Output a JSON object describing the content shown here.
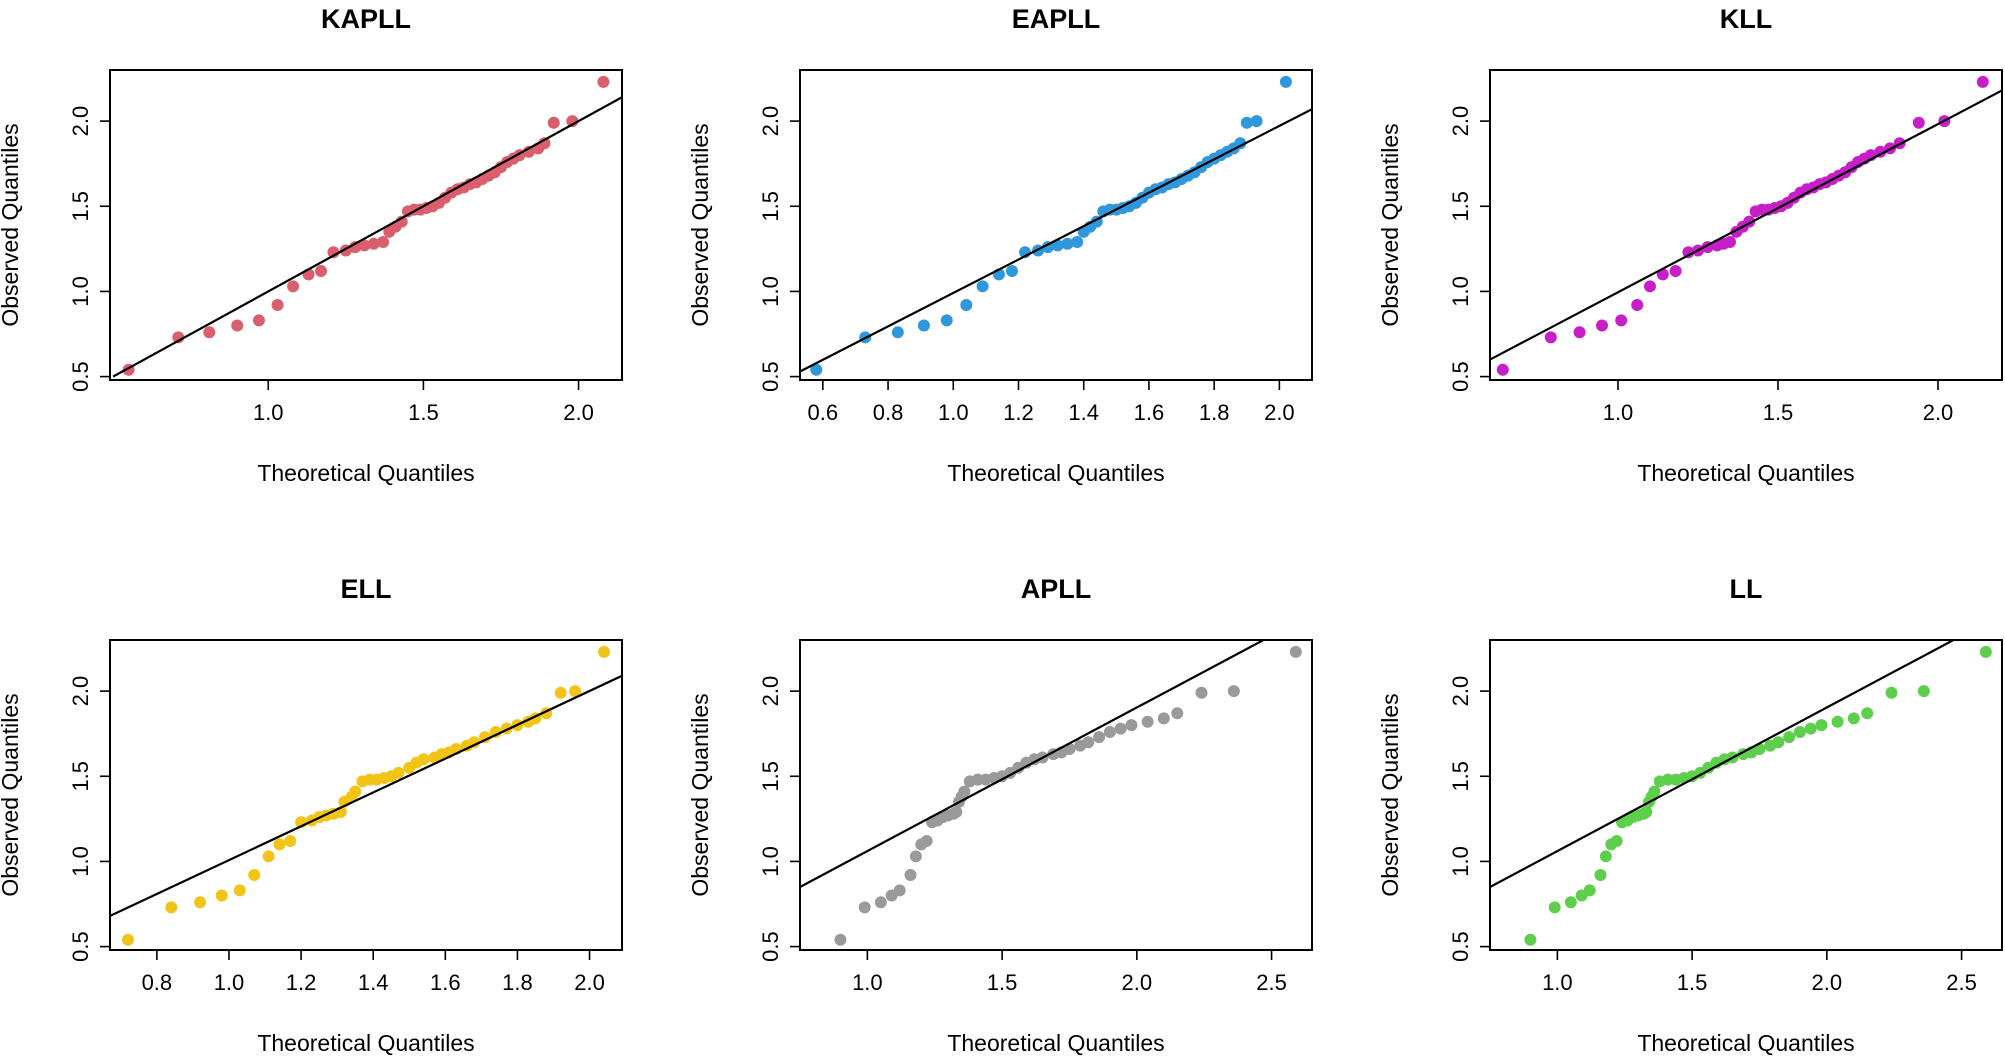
{
  "chart_data": [
    {
      "type": "scatter",
      "title": "KAPLL",
      "xlabel": "Theoretical Quantiles",
      "ylabel": "Observed Quantiles",
      "color": "#d95f6e",
      "xlim": [
        0.49,
        2.14
      ],
      "ylim": [
        0.48,
        2.3
      ],
      "xticks": [
        "1.0",
        "1.5",
        "2.0"
      ],
      "yticks": [
        "0.5",
        "1.0",
        "1.5",
        "2.0"
      ],
      "ref_line": [
        [
          0.5,
          0.5
        ],
        [
          2.14,
          2.14
        ]
      ],
      "points": [
        [
          0.55,
          0.54
        ],
        [
          0.71,
          0.73
        ],
        [
          0.81,
          0.76
        ],
        [
          0.9,
          0.8
        ],
        [
          0.97,
          0.83
        ],
        [
          1.03,
          0.92
        ],
        [
          1.08,
          1.03
        ],
        [
          1.13,
          1.1
        ],
        [
          1.17,
          1.12
        ],
        [
          1.21,
          1.23
        ],
        [
          1.25,
          1.24
        ],
        [
          1.28,
          1.26
        ],
        [
          1.31,
          1.27
        ],
        [
          1.34,
          1.28
        ],
        [
          1.37,
          1.29
        ],
        [
          1.39,
          1.35
        ],
        [
          1.41,
          1.38
        ],
        [
          1.43,
          1.41
        ],
        [
          1.45,
          1.47
        ],
        [
          1.47,
          1.48
        ],
        [
          1.49,
          1.48
        ],
        [
          1.51,
          1.49
        ],
        [
          1.53,
          1.5
        ],
        [
          1.55,
          1.52
        ],
        [
          1.57,
          1.55
        ],
        [
          1.59,
          1.58
        ],
        [
          1.61,
          1.6
        ],
        [
          1.63,
          1.61
        ],
        [
          1.65,
          1.63
        ],
        [
          1.67,
          1.64
        ],
        [
          1.69,
          1.66
        ],
        [
          1.71,
          1.68
        ],
        [
          1.73,
          1.7
        ],
        [
          1.75,
          1.73
        ],
        [
          1.77,
          1.76
        ],
        [
          1.79,
          1.78
        ],
        [
          1.81,
          1.8
        ],
        [
          1.84,
          1.82
        ],
        [
          1.87,
          1.84
        ],
        [
          1.89,
          1.87
        ],
        [
          1.92,
          1.99
        ],
        [
          1.98,
          2.0
        ],
        [
          2.08,
          2.23
        ]
      ]
    },
    {
      "type": "scatter",
      "title": "EAPLL",
      "xlabel": "Theoretical Quantiles",
      "ylabel": "Observed Quantiles",
      "color": "#2f97dc",
      "xlim": [
        0.53,
        2.1
      ],
      "ylim": [
        0.48,
        2.3
      ],
      "xticks": [
        "0.6",
        "0.8",
        "1.0",
        "1.2",
        "1.4",
        "1.6",
        "1.8",
        "2.0"
      ],
      "yticks": [
        "0.5",
        "1.0",
        "1.5",
        "2.0"
      ],
      "ref_line": [
        [
          0.53,
          0.53
        ],
        [
          2.1,
          2.07
        ]
      ],
      "points": [
        [
          0.58,
          0.54
        ],
        [
          0.73,
          0.73
        ],
        [
          0.83,
          0.76
        ],
        [
          0.91,
          0.8
        ],
        [
          0.98,
          0.83
        ],
        [
          1.04,
          0.92
        ],
        [
          1.09,
          1.03
        ],
        [
          1.14,
          1.1
        ],
        [
          1.18,
          1.12
        ],
        [
          1.22,
          1.23
        ],
        [
          1.26,
          1.24
        ],
        [
          1.29,
          1.26
        ],
        [
          1.32,
          1.27
        ],
        [
          1.35,
          1.28
        ],
        [
          1.38,
          1.29
        ],
        [
          1.4,
          1.35
        ],
        [
          1.42,
          1.38
        ],
        [
          1.44,
          1.41
        ],
        [
          1.46,
          1.47
        ],
        [
          1.48,
          1.48
        ],
        [
          1.5,
          1.48
        ],
        [
          1.52,
          1.49
        ],
        [
          1.54,
          1.5
        ],
        [
          1.56,
          1.52
        ],
        [
          1.58,
          1.55
        ],
        [
          1.6,
          1.58
        ],
        [
          1.62,
          1.6
        ],
        [
          1.64,
          1.61
        ],
        [
          1.66,
          1.63
        ],
        [
          1.68,
          1.64
        ],
        [
          1.7,
          1.66
        ],
        [
          1.72,
          1.68
        ],
        [
          1.74,
          1.7
        ],
        [
          1.76,
          1.73
        ],
        [
          1.78,
          1.76
        ],
        [
          1.8,
          1.78
        ],
        [
          1.82,
          1.8
        ],
        [
          1.84,
          1.82
        ],
        [
          1.86,
          1.84
        ],
        [
          1.88,
          1.87
        ],
        [
          1.9,
          1.99
        ],
        [
          1.93,
          2.0
        ],
        [
          2.02,
          2.23
        ]
      ]
    },
    {
      "type": "scatter",
      "title": "KLL",
      "xlabel": "Theoretical Quantiles",
      "ylabel": "Observed Quantiles",
      "color": "#c71fc7",
      "xlim": [
        0.6,
        2.2
      ],
      "ylim": [
        0.48,
        2.3
      ],
      "xticks": [
        "1.0",
        "1.5",
        "2.0"
      ],
      "yticks": [
        "0.5",
        "1.0",
        "1.5",
        "2.0"
      ],
      "ref_line": [
        [
          0.6,
          0.6
        ],
        [
          2.2,
          2.18
        ]
      ],
      "points": [
        [
          0.64,
          0.54
        ],
        [
          0.79,
          0.73
        ],
        [
          0.88,
          0.76
        ],
        [
          0.95,
          0.8
        ],
        [
          1.01,
          0.83
        ],
        [
          1.06,
          0.92
        ],
        [
          1.1,
          1.03
        ],
        [
          1.14,
          1.1
        ],
        [
          1.18,
          1.12
        ],
        [
          1.22,
          1.23
        ],
        [
          1.25,
          1.24
        ],
        [
          1.28,
          1.26
        ],
        [
          1.31,
          1.27
        ],
        [
          1.33,
          1.28
        ],
        [
          1.35,
          1.29
        ],
        [
          1.37,
          1.35
        ],
        [
          1.39,
          1.38
        ],
        [
          1.41,
          1.41
        ],
        [
          1.43,
          1.47
        ],
        [
          1.45,
          1.48
        ],
        [
          1.47,
          1.48
        ],
        [
          1.49,
          1.49
        ],
        [
          1.51,
          1.5
        ],
        [
          1.53,
          1.52
        ],
        [
          1.55,
          1.55
        ],
        [
          1.57,
          1.58
        ],
        [
          1.59,
          1.6
        ],
        [
          1.61,
          1.61
        ],
        [
          1.63,
          1.63
        ],
        [
          1.65,
          1.64
        ],
        [
          1.67,
          1.66
        ],
        [
          1.69,
          1.68
        ],
        [
          1.71,
          1.7
        ],
        [
          1.73,
          1.73
        ],
        [
          1.75,
          1.76
        ],
        [
          1.77,
          1.78
        ],
        [
          1.79,
          1.8
        ],
        [
          1.82,
          1.82
        ],
        [
          1.85,
          1.84
        ],
        [
          1.88,
          1.87
        ],
        [
          1.94,
          1.99
        ],
        [
          2.02,
          2.0
        ],
        [
          2.14,
          2.23
        ]
      ]
    },
    {
      "type": "scatter",
      "title": "ELL",
      "xlabel": "Theoretical Quantiles",
      "ylabel": "Observed Quantiles",
      "color": "#f2c418",
      "xlim": [
        0.67,
        2.09
      ],
      "ylim": [
        0.48,
        2.3
      ],
      "xticks": [
        "0.8",
        "1.0",
        "1.2",
        "1.4",
        "1.6",
        "1.8",
        "2.0"
      ],
      "yticks": [
        "0.5",
        "1.0",
        "1.5",
        "2.0"
      ],
      "ref_line": [
        [
          0.67,
          0.68
        ],
        [
          2.09,
          2.09
        ]
      ],
      "points": [
        [
          0.72,
          0.54
        ],
        [
          0.84,
          0.73
        ],
        [
          0.92,
          0.76
        ],
        [
          0.98,
          0.8
        ],
        [
          1.03,
          0.83
        ],
        [
          1.07,
          0.92
        ],
        [
          1.11,
          1.03
        ],
        [
          1.14,
          1.1
        ],
        [
          1.17,
          1.12
        ],
        [
          1.2,
          1.23
        ],
        [
          1.23,
          1.24
        ],
        [
          1.25,
          1.26
        ],
        [
          1.27,
          1.27
        ],
        [
          1.29,
          1.28
        ],
        [
          1.31,
          1.29
        ],
        [
          1.32,
          1.35
        ],
        [
          1.34,
          1.38
        ],
        [
          1.35,
          1.41
        ],
        [
          1.37,
          1.47
        ],
        [
          1.39,
          1.48
        ],
        [
          1.41,
          1.48
        ],
        [
          1.43,
          1.49
        ],
        [
          1.45,
          1.5
        ],
        [
          1.47,
          1.52
        ],
        [
          1.5,
          1.55
        ],
        [
          1.52,
          1.58
        ],
        [
          1.54,
          1.6
        ],
        [
          1.57,
          1.61
        ],
        [
          1.59,
          1.63
        ],
        [
          1.61,
          1.64
        ],
        [
          1.63,
          1.66
        ],
        [
          1.66,
          1.68
        ],
        [
          1.68,
          1.7
        ],
        [
          1.71,
          1.73
        ],
        [
          1.74,
          1.76
        ],
        [
          1.77,
          1.78
        ],
        [
          1.8,
          1.8
        ],
        [
          1.83,
          1.82
        ],
        [
          1.85,
          1.84
        ],
        [
          1.88,
          1.87
        ],
        [
          1.92,
          1.99
        ],
        [
          1.96,
          2.0
        ],
        [
          2.04,
          2.23
        ]
      ]
    },
    {
      "type": "scatter",
      "title": "APLL",
      "xlabel": "Theoretical Quantiles",
      "ylabel": "Observed Quantiles",
      "color": "#9a9a9a",
      "xlim": [
        0.75,
        2.65
      ],
      "ylim": [
        0.48,
        2.3
      ],
      "xticks": [
        "1.0",
        "1.5",
        "2.0",
        "2.5"
      ],
      "yticks": [
        "0.5",
        "1.0",
        "1.5",
        "2.0"
      ],
      "ref_line": [
        [
          0.75,
          0.85
        ],
        [
          2.47,
          2.3
        ]
      ],
      "points": [
        [
          0.9,
          0.54
        ],
        [
          0.99,
          0.73
        ],
        [
          1.05,
          0.76
        ],
        [
          1.09,
          0.8
        ],
        [
          1.12,
          0.83
        ],
        [
          1.16,
          0.92
        ],
        [
          1.18,
          1.03
        ],
        [
          1.2,
          1.1
        ],
        [
          1.22,
          1.12
        ],
        [
          1.24,
          1.23
        ],
        [
          1.26,
          1.24
        ],
        [
          1.28,
          1.26
        ],
        [
          1.3,
          1.27
        ],
        [
          1.32,
          1.28
        ],
        [
          1.33,
          1.29
        ],
        [
          1.34,
          1.35
        ],
        [
          1.35,
          1.38
        ],
        [
          1.36,
          1.41
        ],
        [
          1.38,
          1.47
        ],
        [
          1.41,
          1.48
        ],
        [
          1.44,
          1.48
        ],
        [
          1.47,
          1.49
        ],
        [
          1.5,
          1.5
        ],
        [
          1.53,
          1.52
        ],
        [
          1.56,
          1.55
        ],
        [
          1.59,
          1.58
        ],
        [
          1.62,
          1.6
        ],
        [
          1.65,
          1.61
        ],
        [
          1.69,
          1.63
        ],
        [
          1.72,
          1.64
        ],
        [
          1.75,
          1.66
        ],
        [
          1.79,
          1.68
        ],
        [
          1.82,
          1.7
        ],
        [
          1.86,
          1.73
        ],
        [
          1.9,
          1.76
        ],
        [
          1.94,
          1.78
        ],
        [
          1.98,
          1.8
        ],
        [
          2.04,
          1.82
        ],
        [
          2.1,
          1.84
        ],
        [
          2.15,
          1.87
        ],
        [
          2.24,
          1.99
        ],
        [
          2.36,
          2.0
        ],
        [
          2.59,
          2.23
        ]
      ]
    },
    {
      "type": "scatter",
      "title": "LL",
      "xlabel": "Theoretical Quantiles",
      "ylabel": "Observed Quantiles",
      "color": "#5ecf4d",
      "xlim": [
        0.75,
        2.65
      ],
      "ylim": [
        0.48,
        2.3
      ],
      "xticks": [
        "1.0",
        "1.5",
        "2.0",
        "2.5"
      ],
      "yticks": [
        "0.5",
        "1.0",
        "1.5",
        "2.0"
      ],
      "ref_line": [
        [
          0.75,
          0.85
        ],
        [
          2.47,
          2.3
        ]
      ],
      "points": [
        [
          0.9,
          0.54
        ],
        [
          0.99,
          0.73
        ],
        [
          1.05,
          0.76
        ],
        [
          1.09,
          0.8
        ],
        [
          1.12,
          0.83
        ],
        [
          1.16,
          0.92
        ],
        [
          1.18,
          1.03
        ],
        [
          1.2,
          1.1
        ],
        [
          1.22,
          1.12
        ],
        [
          1.24,
          1.23
        ],
        [
          1.26,
          1.24
        ],
        [
          1.28,
          1.26
        ],
        [
          1.3,
          1.27
        ],
        [
          1.32,
          1.28
        ],
        [
          1.33,
          1.29
        ],
        [
          1.34,
          1.35
        ],
        [
          1.35,
          1.38
        ],
        [
          1.36,
          1.41
        ],
        [
          1.38,
          1.47
        ],
        [
          1.41,
          1.48
        ],
        [
          1.44,
          1.48
        ],
        [
          1.47,
          1.49
        ],
        [
          1.5,
          1.5
        ],
        [
          1.53,
          1.52
        ],
        [
          1.56,
          1.55
        ],
        [
          1.59,
          1.58
        ],
        [
          1.62,
          1.6
        ],
        [
          1.65,
          1.61
        ],
        [
          1.69,
          1.63
        ],
        [
          1.72,
          1.64
        ],
        [
          1.75,
          1.66
        ],
        [
          1.79,
          1.68
        ],
        [
          1.82,
          1.7
        ],
        [
          1.86,
          1.73
        ],
        [
          1.9,
          1.76
        ],
        [
          1.94,
          1.78
        ],
        [
          1.98,
          1.8
        ],
        [
          2.04,
          1.82
        ],
        [
          2.1,
          1.84
        ],
        [
          2.15,
          1.87
        ],
        [
          2.24,
          1.99
        ],
        [
          2.36,
          2.0
        ],
        [
          2.59,
          2.23
        ]
      ]
    }
  ]
}
